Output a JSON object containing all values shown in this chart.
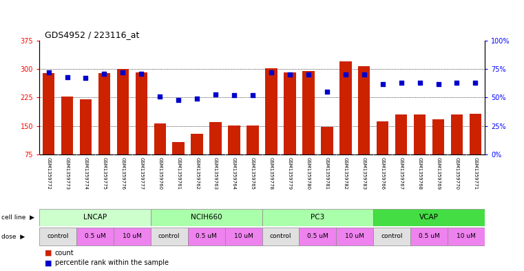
{
  "title": "GDS4952 / 223116_at",
  "samples": [
    "GSM1359772",
    "GSM1359773",
    "GSM1359774",
    "GSM1359775",
    "GSM1359776",
    "GSM1359777",
    "GSM1359760",
    "GSM1359761",
    "GSM1359762",
    "GSM1359763",
    "GSM1359764",
    "GSM1359765",
    "GSM1359778",
    "GSM1359779",
    "GSM1359780",
    "GSM1359781",
    "GSM1359782",
    "GSM1359783",
    "GSM1359766",
    "GSM1359767",
    "GSM1359768",
    "GSM1359769",
    "GSM1359770",
    "GSM1359771"
  ],
  "counts": [
    290,
    228,
    220,
    290,
    301,
    292,
    157,
    107,
    130,
    160,
    152,
    152,
    302,
    292,
    295,
    148,
    320,
    308,
    163,
    181,
    181,
    167,
    180,
    182
  ],
  "percentile_ranks": [
    72,
    68,
    67,
    71,
    72,
    71,
    51,
    48,
    49,
    53,
    52,
    52,
    72,
    70,
    70,
    55,
    70,
    70,
    62,
    63,
    63,
    62,
    63,
    63
  ],
  "cell_lines": [
    {
      "label": "LNCAP",
      "start": 0,
      "end": 6,
      "color": "#CCFFCC"
    },
    {
      "label": "NCIH660",
      "start": 6,
      "end": 12,
      "color": "#AAFFAA"
    },
    {
      "label": "PC3",
      "start": 12,
      "end": 18,
      "color": "#CCFFCC"
    },
    {
      "label": "VCAP",
      "start": 18,
      "end": 24,
      "color": "#44DD44"
    }
  ],
  "dose_blocks": [
    {
      "label": "control",
      "start": 0,
      "end": 2,
      "color": "#E0E0E0"
    },
    {
      "label": "0.5 uM",
      "start": 2,
      "end": 4,
      "color": "#EE82EE"
    },
    {
      "label": "10 uM",
      "start": 4,
      "end": 6,
      "color": "#EE82EE"
    },
    {
      "label": "control",
      "start": 6,
      "end": 8,
      "color": "#E0E0E0"
    },
    {
      "label": "0.5 uM",
      "start": 8,
      "end": 10,
      "color": "#EE82EE"
    },
    {
      "label": "10 uM",
      "start": 10,
      "end": 12,
      "color": "#EE82EE"
    },
    {
      "label": "control",
      "start": 12,
      "end": 14,
      "color": "#E0E0E0"
    },
    {
      "label": "0.5 uM",
      "start": 14,
      "end": 16,
      "color": "#EE82EE"
    },
    {
      "label": "10 uM",
      "start": 16,
      "end": 18,
      "color": "#EE82EE"
    },
    {
      "label": "control",
      "start": 18,
      "end": 20,
      "color": "#E0E0E0"
    },
    {
      "label": "0.5 uM",
      "start": 20,
      "end": 22,
      "color": "#EE82EE"
    },
    {
      "label": "10 uM",
      "start": 22,
      "end": 24,
      "color": "#EE82EE"
    }
  ],
  "ylim_left": [
    75,
    375
  ],
  "yticks_left": [
    75,
    150,
    225,
    300,
    375
  ],
  "ylim_right": [
    0,
    100
  ],
  "yticks_right": [
    0,
    25,
    50,
    75,
    100
  ],
  "bar_color": "#CC2200",
  "dot_color": "#0000CC",
  "background_color": "#FFFFFF"
}
